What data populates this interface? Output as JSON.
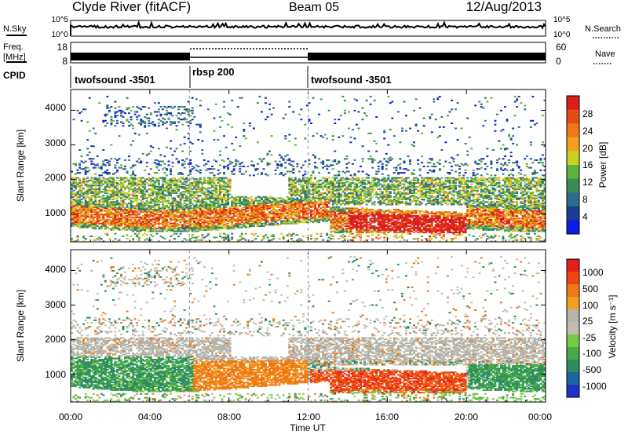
{
  "header": {
    "station": "Clyde River (fitACF)",
    "beam": "Beam 05",
    "date": "12/Aug/2013"
  },
  "strip_noise": {
    "left_label": "N.Sky",
    "right_label": "N.Search",
    "left_ticks": [
      "10^5",
      "10^0"
    ],
    "right_ticks": [
      "10^5",
      "10^0"
    ]
  },
  "strip_freq": {
    "left_label": "Freq.",
    "left_unit": "[MHz]",
    "right_label": "Nave",
    "left_ticks": [
      "18",
      "8"
    ],
    "right_ticks": [
      "60",
      "0"
    ]
  },
  "cpid": {
    "label": "CPID",
    "segments": [
      {
        "name": "twofsound -3501",
        "start_h": 0,
        "end_h": 6
      },
      {
        "name": "rbsp 200",
        "start_h": 6,
        "end_h": 12
      },
      {
        "name": "twofsound -3501",
        "start_h": 12,
        "end_h": 24
      }
    ]
  },
  "colors": {
    "power_scale": [
      "#0a1ee6",
      "#1e3c96",
      "#2d6e8c",
      "#3c8c5a",
      "#5ab43c",
      "#c8d21e",
      "#f0a01e",
      "#f07814",
      "#e64b14",
      "#dc1e1e"
    ],
    "velocity_scale": [
      "#1e32c8",
      "#1e64a0",
      "#2d8c64",
      "#46aa46",
      "#78c846",
      "#bebeb4",
      "#b4b4aa",
      "#f0a01e",
      "#f07814",
      "#f04614",
      "#e61e1e"
    ]
  },
  "chart_data": [
    {
      "type": "heatmap",
      "panel": "power",
      "ylabel": "Slant Range [km]",
      "xlabel": "",
      "y_ticks": [
        "1000",
        "2000",
        "3000",
        "4000"
      ],
      "ylim": [
        200,
        4600
      ],
      "xlim_hours": [
        0,
        24
      ],
      "colorbar_label": "Power [dB]",
      "colorbar_ticks": [
        "4",
        "8",
        "12",
        "16",
        "20",
        "24",
        "28"
      ],
      "colorbar_range": [
        0,
        30
      ]
    },
    {
      "type": "heatmap",
      "panel": "velocity",
      "ylabel": "Slant Range [km]",
      "xlabel": "Time UT",
      "x_ticks": [
        "00:00",
        "04:00",
        "08:00",
        "12:00",
        "16:00",
        "20:00",
        "00:00"
      ],
      "y_ticks": [
        "1000",
        "2000",
        "3000",
        "4000"
      ],
      "ylim": [
        200,
        4600
      ],
      "xlim_hours": [
        0,
        24
      ],
      "colorbar_label": "Velocity [m s⁻¹]",
      "colorbar_ticks": [
        "1000",
        "500",
        "100",
        "25",
        "-25",
        "-100",
        "-500",
        "-1000"
      ]
    }
  ]
}
